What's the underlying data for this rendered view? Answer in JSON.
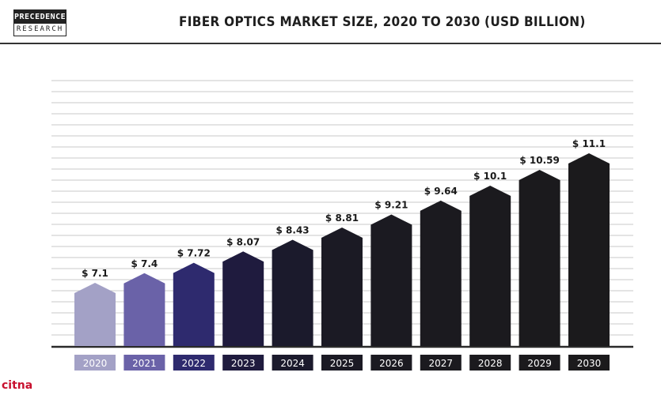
{
  "brand": {
    "logo_top": "PRECEDENCE",
    "logo_bottom": "RESEARCH"
  },
  "watermark": "citna",
  "chart_data": {
    "type": "bar",
    "title": "FIBER OPTICS MARKET SIZE, 2020 TO 2030 (USD BILLION)",
    "xlabel": "",
    "ylabel": "",
    "categories": [
      "2020",
      "2021",
      "2022",
      "2023",
      "2024",
      "2025",
      "2026",
      "2027",
      "2028",
      "2029",
      "2030"
    ],
    "values": [
      7.1,
      7.4,
      7.72,
      8.07,
      8.43,
      8.81,
      9.21,
      9.64,
      10.1,
      10.59,
      11.1
    ],
    "value_labels": [
      "$ 7.1",
      "$ 7.4",
      "$ 7.72",
      "$ 8.07",
      "$ 8.43",
      "$ 8.81",
      "$ 9.21",
      "$ 9.64",
      "$ 10.1",
      "$ 10.59",
      "$ 11.1"
    ],
    "colors": [
      "#a3a1c6",
      "#6a62a8",
      "#2e2a6e",
      "#1f1b3e",
      "#1b1a2c",
      "#1b1a24",
      "#1b1a21",
      "#1b1a1f",
      "#1b1a1e",
      "#1b1a1d",
      "#1b1a1c"
    ],
    "grid": true
  }
}
